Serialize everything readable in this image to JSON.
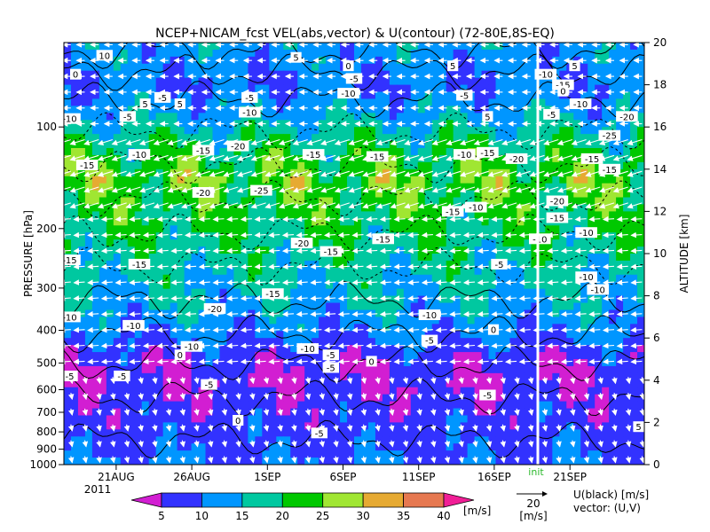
{
  "chart_data": {
    "type": "heatmap",
    "title": "NCEP+NICAM_fcst VEL(abs,vector) & U(contour)  (72-80E,8S-EQ)",
    "ylabel_left": "PRESSURE [hPa]",
    "ylabel_right": "ALTITUDE [km]",
    "x_ticks": [
      "21AUG",
      "26AUG",
      "1SEP",
      "6SEP",
      "11SEP",
      "16SEP",
      "21SEP"
    ],
    "year_label": "2011",
    "init_label": "init",
    "pressure_ticks": [
      "100",
      "200",
      "300",
      "400",
      "500",
      "600",
      "700",
      "800",
      "900",
      "1000"
    ],
    "altitude_ticks": [
      "0",
      "2",
      "4",
      "6",
      "8",
      "10",
      "12",
      "14",
      "16",
      "18",
      "20"
    ],
    "altitude_range": [
      0,
      20
    ],
    "colorbar": {
      "levels": [
        "5",
        "10",
        "15",
        "20",
        "25",
        "30",
        "35",
        "40"
      ],
      "unit": "[m/s]",
      "colors": [
        "#d21ed2",
        "#3232ff",
        "#0096ff",
        "#00c8a0",
        "#00c800",
        "#a0e632",
        "#e6aa32",
        "#e67850",
        "#f01e96"
      ]
    },
    "vector_legend": {
      "value": "20",
      "unit": "[m/s]"
    },
    "contour_legend": {
      "line1": "U(black) [m/s]",
      "line2": "vector: (U,V)"
    },
    "contour_labels": [
      {
        "t": "10",
        "x": 0.07,
        "alt": 19.4
      },
      {
        "t": "5",
        "x": 0.4,
        "alt": 19.3
      },
      {
        "t": "0",
        "x": 0.49,
        "alt": 18.9
      },
      {
        "t": "5",
        "x": 0.67,
        "alt": 18.9
      },
      {
        "t": "0",
        "x": 0.02,
        "alt": 18.5
      },
      {
        "t": "-5",
        "x": 0.5,
        "alt": 18.3
      },
      {
        "t": "-10",
        "x": 0.49,
        "alt": 17.6
      },
      {
        "t": "-5",
        "x": 0.69,
        "alt": 17.5
      },
      {
        "t": "-5",
        "x": 0.17,
        "alt": 17.4
      },
      {
        "t": "5",
        "x": 0.14,
        "alt": 17.1
      },
      {
        "t": "5",
        "x": 0.2,
        "alt": 17.1
      },
      {
        "t": "-5",
        "x": 0.32,
        "alt": 17.4
      },
      {
        "t": "-10",
        "x": 0.32,
        "alt": 16.7
      },
      {
        "t": "-5",
        "x": 0.11,
        "alt": 16.5
      },
      {
        "t": "5",
        "x": 0.73,
        "alt": 16.5
      },
      {
        "t": "-10",
        "x": 0.01,
        "alt": 16.4
      },
      {
        "t": "-20",
        "x": 0.3,
        "alt": 15.1
      },
      {
        "t": "-15",
        "x": 0.24,
        "alt": 14.9
      },
      {
        "t": "-10",
        "x": 0.13,
        "alt": 14.7
      },
      {
        "t": "-15",
        "x": 0.43,
        "alt": 14.7
      },
      {
        "t": "-15",
        "x": 0.54,
        "alt": 14.6
      },
      {
        "t": "-10",
        "x": 0.69,
        "alt": 14.7
      },
      {
        "t": "-15",
        "x": 0.73,
        "alt": 14.8
      },
      {
        "t": "-15",
        "x": 0.04,
        "alt": 14.2
      },
      {
        "t": "-20",
        "x": 0.78,
        "alt": 14.5
      },
      {
        "t": "-20",
        "x": 0.24,
        "alt": 12.9
      },
      {
        "t": "-25",
        "x": 0.34,
        "alt": 13.0
      },
      {
        "t": "-10",
        "x": 0.71,
        "alt": 12.2
      },
      {
        "t": "-15",
        "x": 0.67,
        "alt": 12.0
      },
      {
        "t": "-20",
        "x": 0.41,
        "alt": 10.5
      },
      {
        "t": "-15",
        "x": 0.55,
        "alt": 10.7
      },
      {
        "t": "-15",
        "x": 0.46,
        "alt": 10.1
      },
      {
        "t": "-15",
        "x": 0.01,
        "alt": 9.7
      },
      {
        "t": "-15",
        "x": 0.13,
        "alt": 9.5
      },
      {
        "t": "-5",
        "x": 0.75,
        "alt": 9.5
      },
      {
        "t": "-15",
        "x": 0.36,
        "alt": 8.1
      },
      {
        "t": "-20",
        "x": 0.26,
        "alt": 7.4
      },
      {
        "t": "-10",
        "x": 0.01,
        "alt": 7.0
      },
      {
        "t": "-10",
        "x": 0.63,
        "alt": 7.1
      },
      {
        "t": "-10",
        "x": 0.12,
        "alt": 6.6
      },
      {
        "t": "-5",
        "x": 0.63,
        "alt": 5.9
      },
      {
        "t": "0",
        "x": 0.74,
        "alt": 6.4
      },
      {
        "t": "-10",
        "x": 0.42,
        "alt": 5.5
      },
      {
        "t": "-10",
        "x": 0.22,
        "alt": 5.6
      },
      {
        "t": "-5",
        "x": 0.46,
        "alt": 5.2
      },
      {
        "t": "-5",
        "x": 0.46,
        "alt": 4.6
      },
      {
        "t": "-5",
        "x": 0.01,
        "alt": 4.2
      },
      {
        "t": "-5",
        "x": 0.1,
        "alt": 4.2
      },
      {
        "t": "0",
        "x": 0.2,
        "alt": 5.2
      },
      {
        "t": "0",
        "x": 0.53,
        "alt": 4.9
      },
      {
        "t": "-5",
        "x": 0.25,
        "alt": 3.8
      },
      {
        "t": "-5",
        "x": 0.73,
        "alt": 3.3
      },
      {
        "t": "0",
        "x": 0.3,
        "alt": 2.1
      },
      {
        "t": "-5",
        "x": 0.44,
        "alt": 1.5
      },
      {
        "t": "-10",
        "x": 0.83,
        "alt": 18.5
      },
      {
        "t": "-15",
        "x": 0.86,
        "alt": 18.0
      },
      {
        "t": "-5",
        "x": 0.84,
        "alt": 16.6
      },
      {
        "t": "-10",
        "x": 0.89,
        "alt": 17.1
      },
      {
        "t": "-20",
        "x": 0.97,
        "alt": 16.5
      },
      {
        "t": "-25",
        "x": 0.94,
        "alt": 15.6
      },
      {
        "t": "-15",
        "x": 0.91,
        "alt": 14.5
      },
      {
        "t": "-15",
        "x": 0.94,
        "alt": 14.0
      },
      {
        "t": "-20",
        "x": 0.85,
        "alt": 12.5
      },
      {
        "t": "-15",
        "x": 0.85,
        "alt": 11.7
      },
      {
        "t": "-10",
        "x": 0.82,
        "alt": 10.7
      },
      {
        "t": "-10",
        "x": 0.9,
        "alt": 11.0
      },
      {
        "t": "-10",
        "x": 0.9,
        "alt": 8.9
      },
      {
        "t": "-10",
        "x": 0.92,
        "alt": 8.3
      },
      {
        "t": "5",
        "x": 0.99,
        "alt": 1.8
      },
      {
        "t": "5",
        "x": 0.88,
        "alt": 18.9
      },
      {
        "t": "0",
        "x": 0.86,
        "alt": 17.7
      }
    ],
    "profile": [
      {
        "alt": 0.0,
        "base": 10,
        "amp": 3
      },
      {
        "alt": 1.0,
        "base": 9,
        "amp": 3
      },
      {
        "alt": 2.5,
        "base": 7,
        "amp": 4
      },
      {
        "alt": 4.0,
        "base": 5,
        "amp": 4
      },
      {
        "alt": 5.0,
        "base": 6,
        "amp": 5
      },
      {
        "alt": 6.0,
        "base": 10,
        "amp": 4
      },
      {
        "alt": 7.5,
        "base": 14,
        "amp": 5
      },
      {
        "alt": 9.0,
        "base": 16,
        "amp": 5
      },
      {
        "alt": 10.5,
        "base": 19,
        "amp": 5
      },
      {
        "alt": 12.0,
        "base": 21,
        "amp": 6
      },
      {
        "alt": 13.5,
        "base": 24,
        "amp": 8
      },
      {
        "alt": 15.0,
        "base": 20,
        "amp": 6
      },
      {
        "alt": 16.5,
        "base": 14,
        "amp": 5
      },
      {
        "alt": 18.0,
        "base": 10,
        "amp": 4
      },
      {
        "alt": 20.0,
        "base": 13,
        "amp": 4
      }
    ]
  }
}
